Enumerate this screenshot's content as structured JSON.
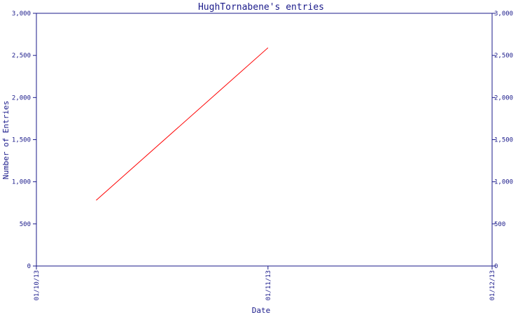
{
  "chart_data": {
    "type": "line",
    "title": "HughTornabene's entries",
    "xlabel": "Date",
    "ylabel": "Number of Entries",
    "x_ticks": [
      "01/10/13",
      "01/11/13",
      "01/12/13"
    ],
    "y_ticks": [
      "0",
      "500",
      "1,000",
      "1,500",
      "2,000",
      "2,500",
      "3,000"
    ],
    "ylim": [
      0,
      3000
    ],
    "grid": false,
    "series": [
      {
        "x": [
          "2013-10-09",
          "2013-11-01"
        ],
        "y": [
          780,
          2590
        ],
        "color": "#ff0000"
      }
    ],
    "colors": {
      "axis": "#1a1a8a",
      "line": "#ff0000"
    }
  }
}
